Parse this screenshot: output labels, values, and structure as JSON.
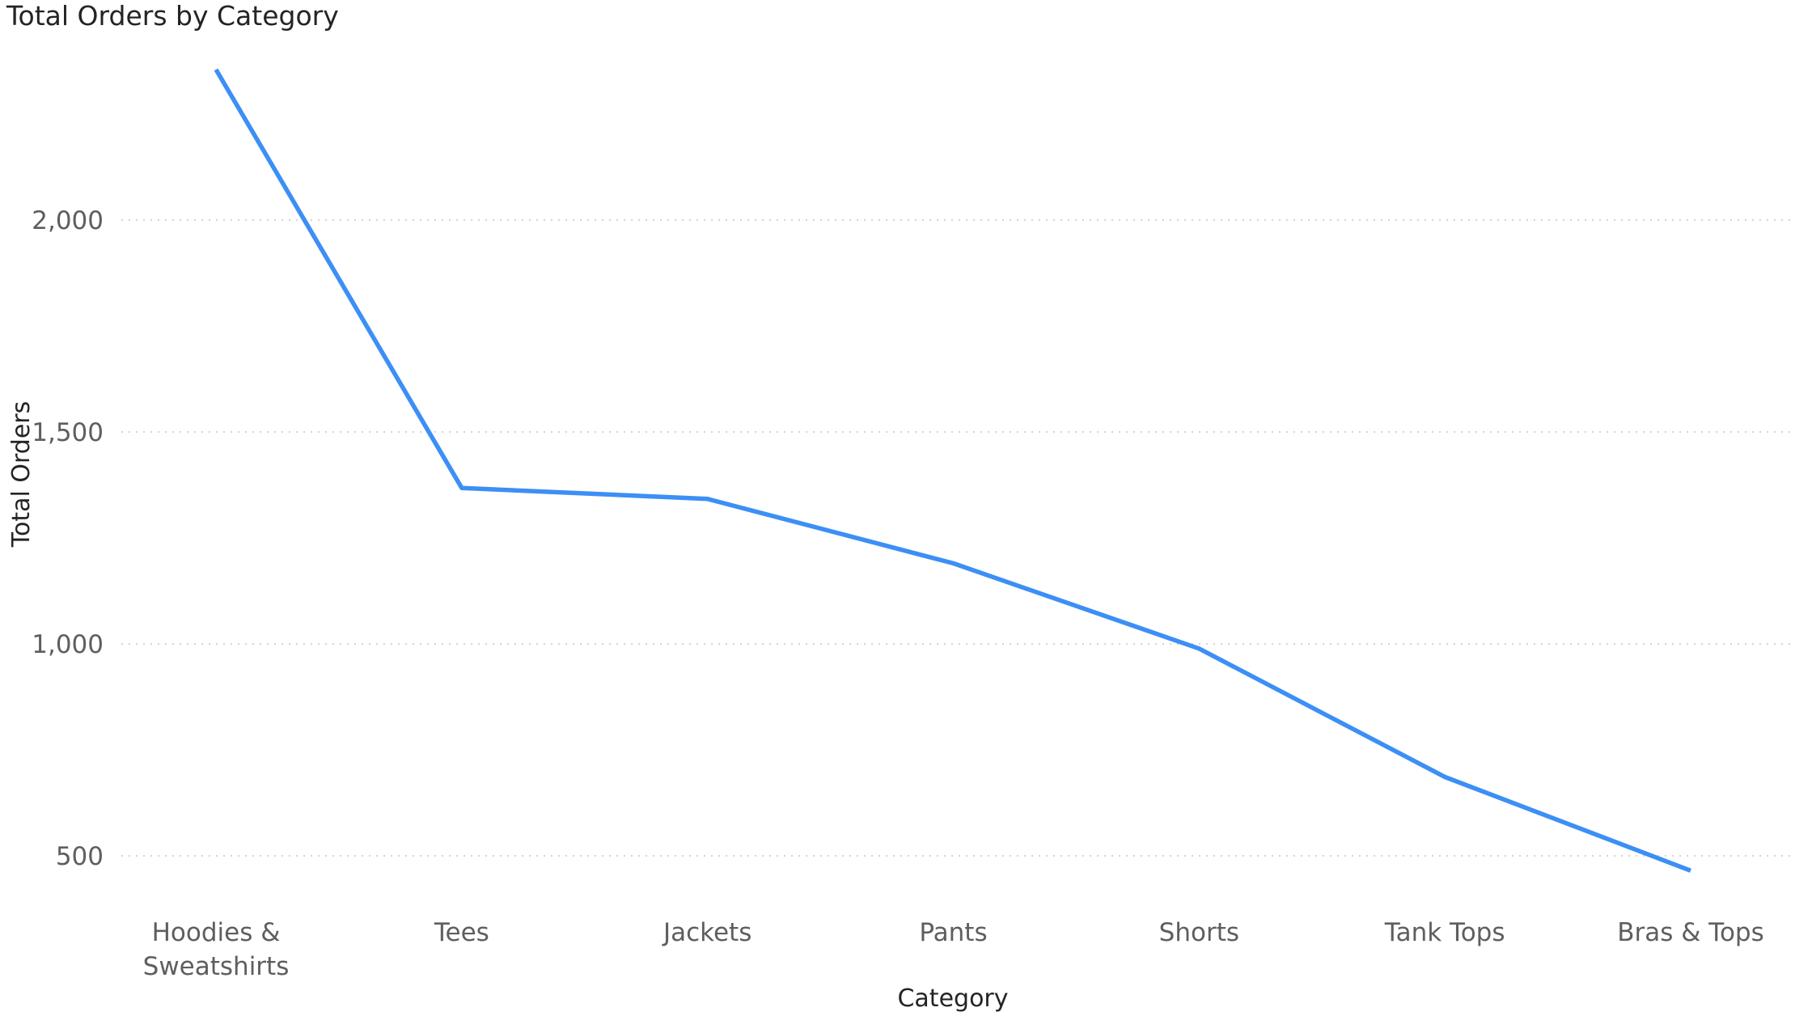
{
  "chart_data": {
    "type": "line",
    "title": "Total Orders by Category",
    "xlabel": "Category",
    "ylabel": "Total Orders",
    "categories": [
      "Hoodies & Sweatshirts",
      "Tees",
      "Jackets",
      "Pants",
      "Shorts",
      "Tank Tops",
      "Bras & Tops"
    ],
    "category_label_lines": [
      [
        "Hoodies &",
        "Sweatshirts"
      ],
      [
        "Tees"
      ],
      [
        "Jackets"
      ],
      [
        "Pants"
      ],
      [
        "Shorts"
      ],
      [
        "Tank Tops"
      ],
      [
        "Bras & Tops"
      ]
    ],
    "series": [
      {
        "values": [
          2355,
          1368,
          1342,
          1190,
          989,
          686,
          465
        ],
        "color": "#3c8ff5"
      }
    ],
    "yticks": [
      500,
      1000,
      1500,
      2000
    ],
    "ytick_labels": [
      "500",
      "1,000",
      "1,500",
      "2,000"
    ],
    "ylim": [
      400,
      2470
    ],
    "grid": true,
    "legend": "none"
  }
}
